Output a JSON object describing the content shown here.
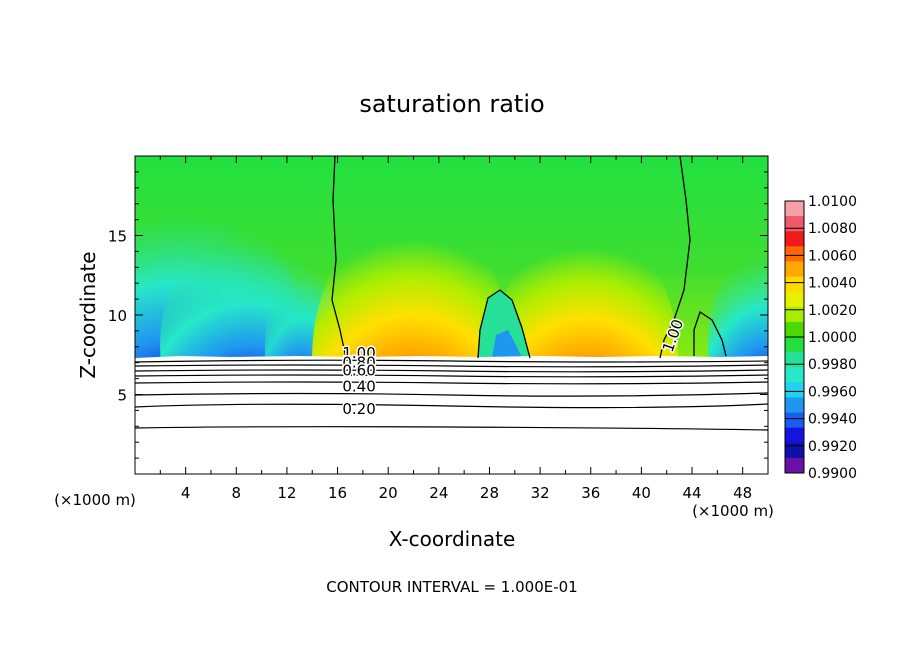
{
  "chart_data": {
    "type": "contour",
    "title": "saturation ratio",
    "xlabel": "X-coordinate",
    "ylabel": "Z-coordinate",
    "x_unit": "(×1000 m)",
    "y_unit": "(×1000 m)",
    "xlim": [
      0,
      50
    ],
    "ylim": [
      0,
      20
    ],
    "x_ticks": [
      4,
      8,
      12,
      16,
      20,
      24,
      28,
      32,
      36,
      40,
      44,
      48
    ],
    "y_ticks": [
      5,
      10,
      15
    ],
    "colorbar": {
      "ticks": [
        "1.0100",
        "1.0080",
        "1.0060",
        "1.0040",
        "1.0020",
        "1.0000",
        "0.9980",
        "0.9960",
        "0.9940",
        "0.9920",
        "0.9900"
      ],
      "colors": [
        "#f5a0a8",
        "#ee5a6a",
        "#f01a1a",
        "#ff6a00",
        "#ffa800",
        "#ffd800",
        "#e8f000",
        "#a8ec00",
        "#4cd800",
        "#22e040",
        "#26e098",
        "#27e8c8",
        "#22d0f0",
        "#1f96f0",
        "#1a5cf0",
        "#1414e0",
        "#1010a8",
        "#6a10a8"
      ]
    },
    "contour_labels": [
      {
        "text": "1.00",
        "x": 17.7,
        "z": 7.6
      },
      {
        "text": "0.80",
        "x": 17.7,
        "z": 7.0
      },
      {
        "text": "0.60",
        "x": 17.7,
        "z": 6.5
      },
      {
        "text": "0.40",
        "x": 17.7,
        "z": 5.5
      },
      {
        "text": "0.20",
        "x": 17.7,
        "z": 4.1
      },
      {
        "text": "1.00",
        "x": 42.5,
        "z": 8.7
      }
    ],
    "footer": "CONTOUR INTERVAL = 1.000E-01"
  }
}
